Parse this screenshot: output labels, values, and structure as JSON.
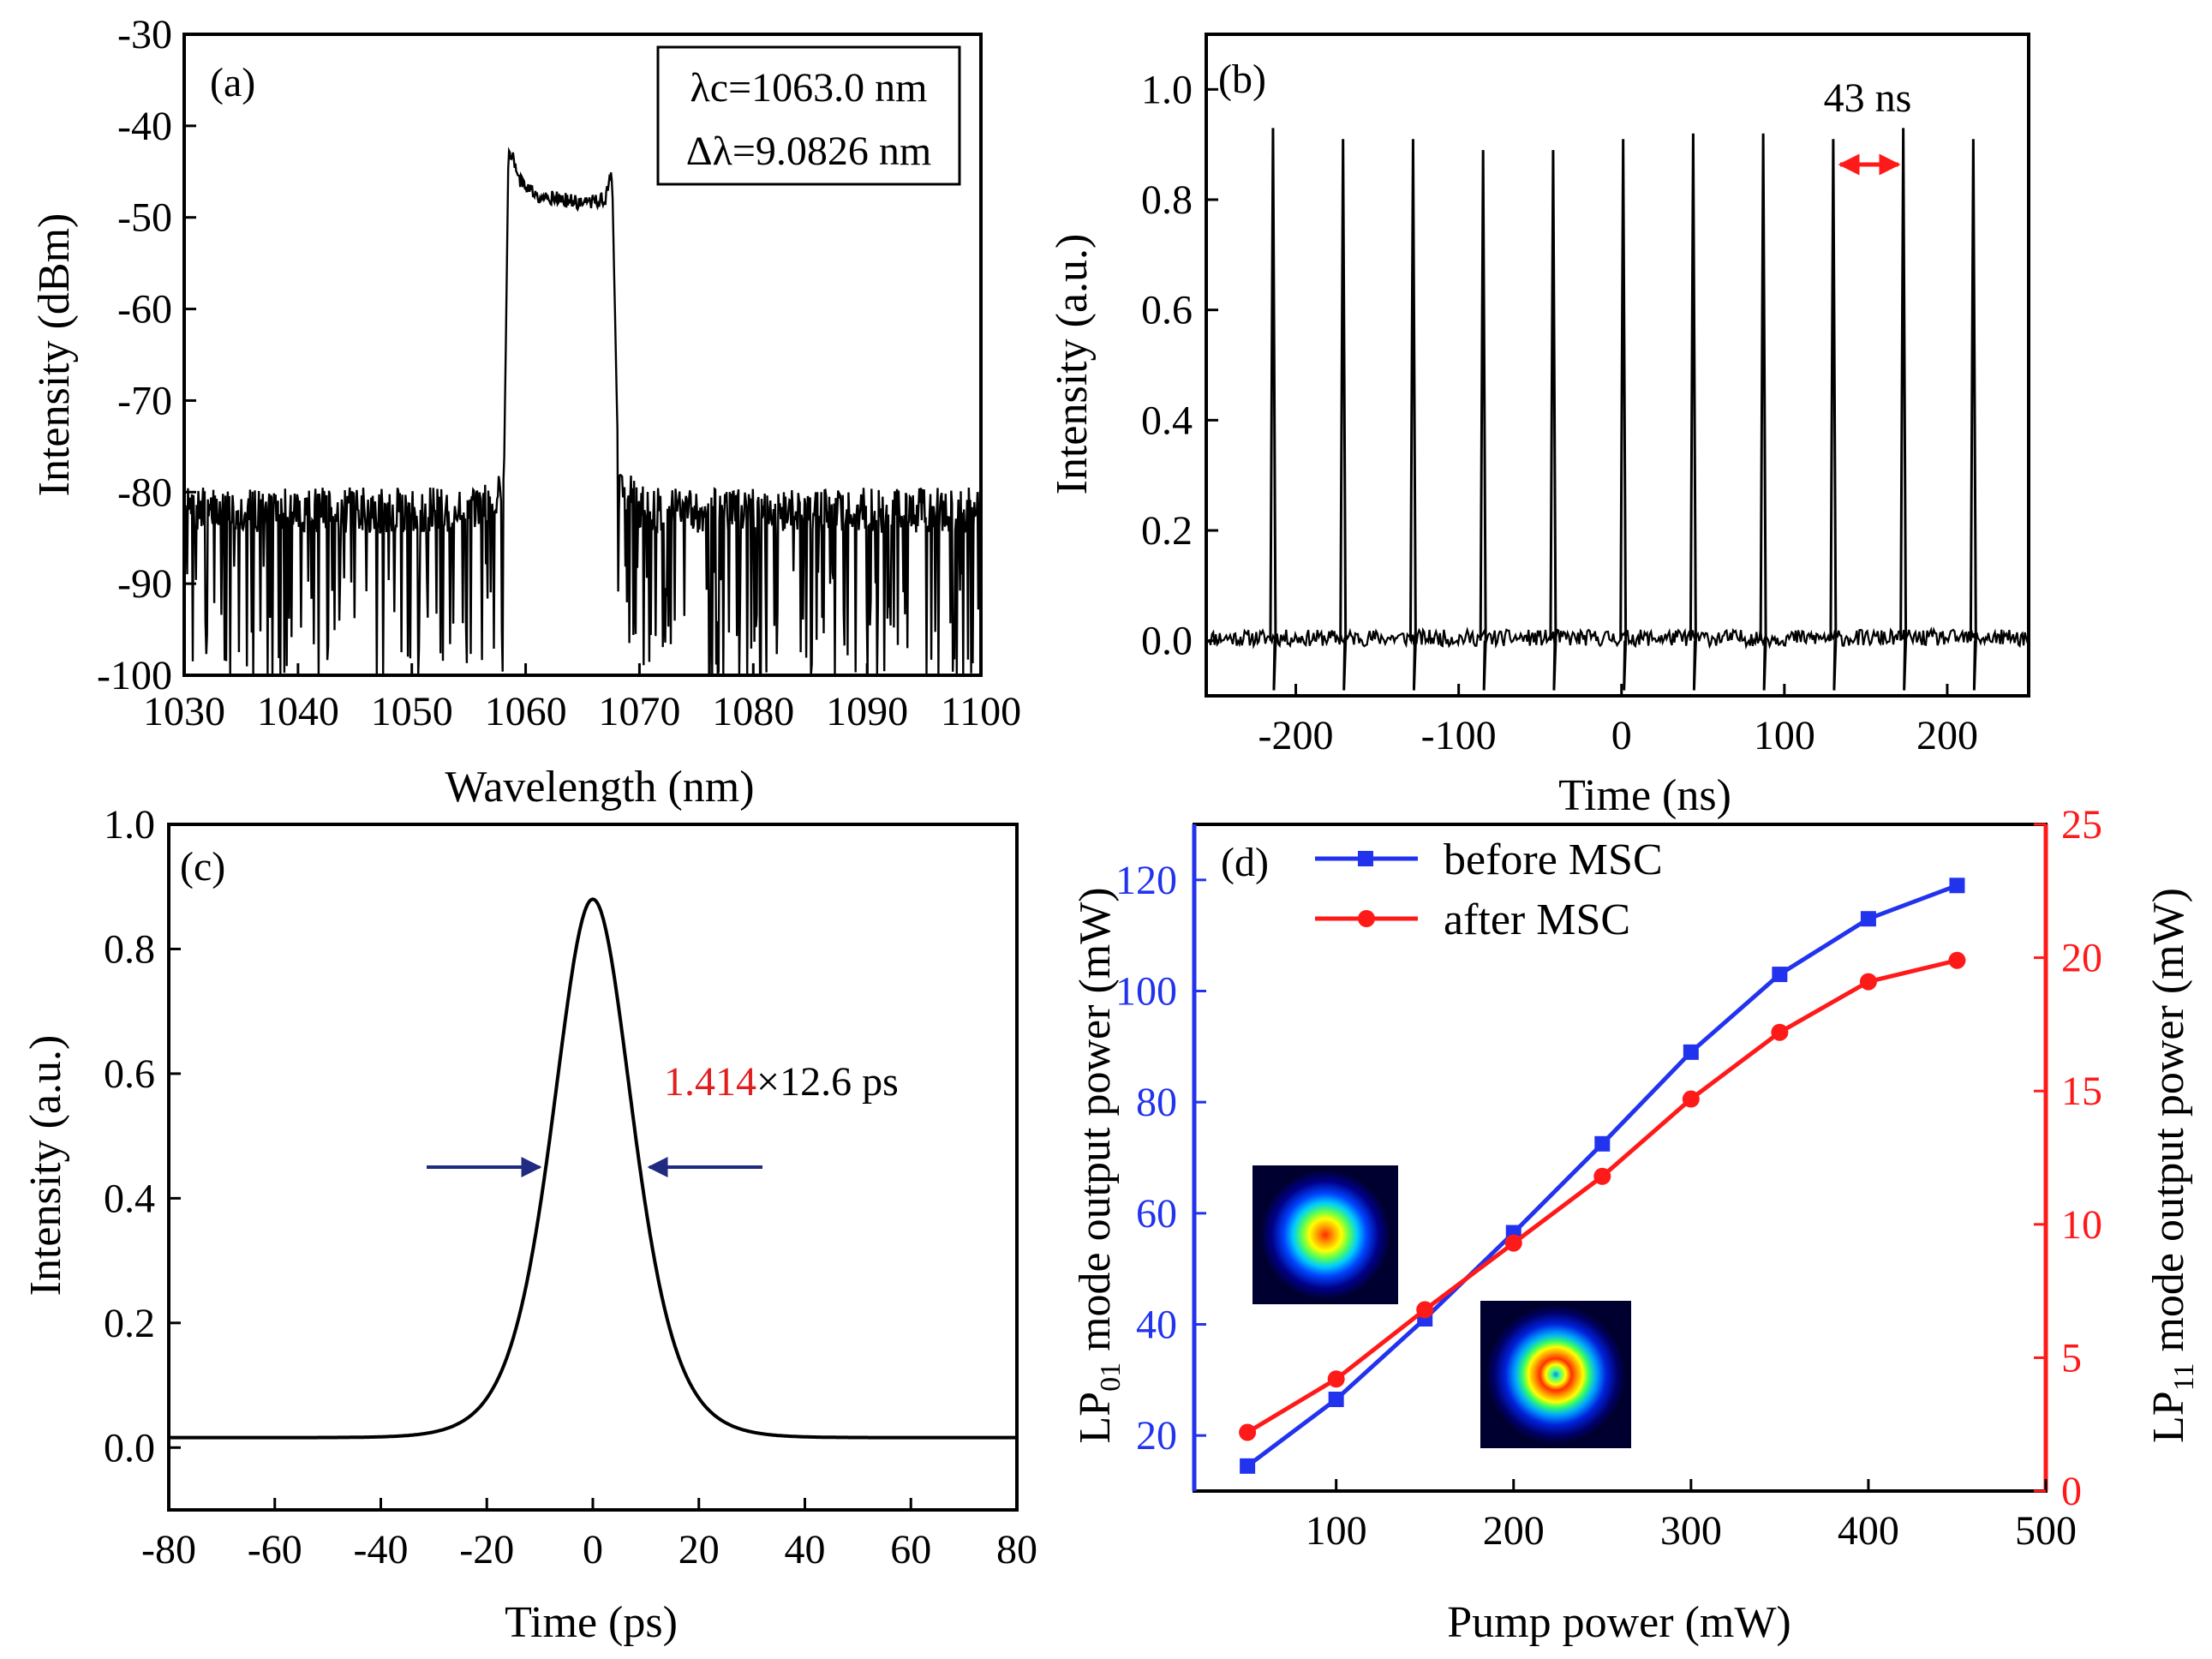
{
  "panels": {
    "a": {
      "label": "(a)",
      "type": "line",
      "xlabel": "Wavelength (nm)",
      "ylabel": "Intensity (dBm)",
      "xlim": [
        1030,
        1100
      ],
      "ylim": [
        -100,
        -30
      ],
      "xticks": [
        1030,
        1040,
        1050,
        1060,
        1070,
        1080,
        1090,
        1100
      ],
      "yticks": [
        -30,
        -40,
        -50,
        -60,
        -70,
        -80,
        -90,
        -100
      ],
      "annotation_lines": [
        "λc=1063.0 nm",
        "Δλ=9.0826 nm"
      ],
      "spectrum": {
        "noise_floor_dbm": -82,
        "band_start_nm": 1058.5,
        "band_end_nm": 1067.6,
        "band_top_dbm": [
          [
            1058.8,
            -43
          ],
          [
            1059.5,
            -46
          ],
          [
            1061,
            -47.5
          ],
          [
            1063,
            -48
          ],
          [
            1065,
            -48.5
          ],
          [
            1067,
            -48
          ],
          [
            1067.5,
            -45.5
          ]
        ]
      }
    },
    "b": {
      "label": "(b)",
      "type": "line",
      "xlabel": "Time (ns)",
      "ylabel": "Intensity (a.u.)",
      "xlim": [
        -255,
        250
      ],
      "ylim": [
        -0.1,
        1.1
      ],
      "xticks": [
        -200,
        -100,
        0,
        100,
        200
      ],
      "yticks": [
        0.0,
        0.2,
        0.4,
        0.6,
        0.8,
        1.0
      ],
      "ytick_labels": [
        "0.0",
        "0.2",
        "0.4",
        "0.6",
        "0.8",
        "1.0"
      ],
      "pulse_times_ns": [
        -214,
        -171,
        -128,
        -85,
        -42,
        1,
        44,
        87,
        130,
        173,
        216
      ],
      "pulse_heights": [
        0.93,
        0.91,
        0.91,
        0.89,
        0.89,
        0.91,
        0.92,
        0.92,
        0.91,
        0.93,
        0.91
      ],
      "period_annotation": "43 ns"
    },
    "c": {
      "label": "(c)",
      "type": "line",
      "xlabel": "Time (ps)",
      "ylabel": "Intensity (a.u.)",
      "xlim": [
        -80,
        80
      ],
      "ylim": [
        -0.1,
        1.0
      ],
      "xticks": [
        -80,
        -60,
        -40,
        -20,
        0,
        20,
        40,
        60,
        80
      ],
      "xtick_labels": [
        "-80",
        "-60",
        "-40",
        "-20",
        "0",
        "20",
        "40",
        "60",
        "80"
      ],
      "yticks": [
        0.0,
        0.2,
        0.4,
        0.6,
        0.8,
        1.0
      ],
      "ytick_labels": [
        "0.0",
        "0.2",
        "0.4",
        "0.6",
        "0.8",
        "1.0"
      ],
      "peak": 0.88,
      "baseline": 0.016,
      "fwhm_ps": 17.8,
      "annotation_factor": "1.414",
      "annotation_rest": "×12.6 ps",
      "annotation_factor_color": "#e02020"
    },
    "d": {
      "label": "(d)",
      "type": "line",
      "xlabel": "Pump power (mW)",
      "ylabel_left_prefix": "LP",
      "ylabel_left_sub": "01",
      "ylabel_left_suffix": " mode output power (mW)",
      "ylabel_right_prefix": "LP",
      "ylabel_right_sub": "11",
      "ylabel_right_suffix": " mode output power (mW)",
      "xlim": [
        20,
        500
      ],
      "ylim_left": [
        10,
        130
      ],
      "ylim_right": [
        0,
        25
      ],
      "xticks": [
        100,
        200,
        300,
        400,
        500
      ],
      "yticks_left": [
        20,
        40,
        60,
        80,
        100,
        120
      ],
      "yticks_right": [
        0,
        5,
        10,
        15,
        20,
        25
      ],
      "left_color": "#2233ee",
      "right_color": "#ff1a1a",
      "x": [
        50,
        100,
        150,
        200,
        250,
        300,
        350,
        400,
        450
      ],
      "series": [
        {
          "name": "before MSC",
          "axis": "left",
          "color": "#2233ee",
          "marker": "square",
          "values": [
            14.5,
            26.5,
            41,
            56.5,
            72.5,
            89,
            103,
            113,
            119
          ]
        },
        {
          "name": "after MSC",
          "axis": "right",
          "color": "#ff1a1a",
          "marker": "circle",
          "values": [
            2.2,
            4.2,
            6.8,
            9.3,
            11.8,
            14.7,
            17.2,
            19.1,
            19.9
          ]
        }
      ]
    }
  }
}
